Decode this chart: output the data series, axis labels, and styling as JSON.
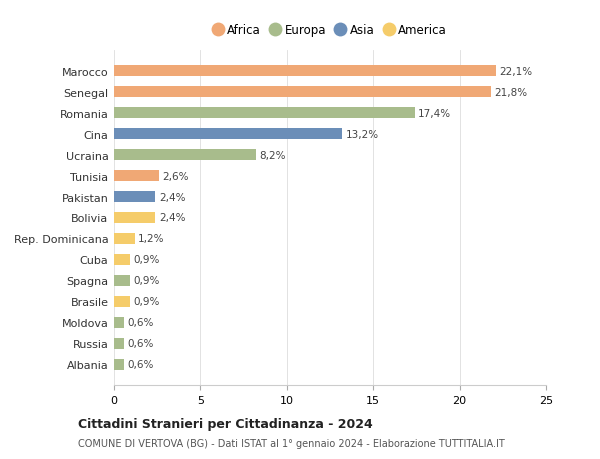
{
  "countries": [
    "Albania",
    "Russia",
    "Moldova",
    "Brasile",
    "Spagna",
    "Cuba",
    "Rep. Dominicana",
    "Bolivia",
    "Pakistan",
    "Tunisia",
    "Ucraina",
    "Cina",
    "Romania",
    "Senegal",
    "Marocco"
  ],
  "values": [
    0.6,
    0.6,
    0.6,
    0.9,
    0.9,
    0.9,
    1.2,
    2.4,
    2.4,
    2.6,
    8.2,
    13.2,
    17.4,
    21.8,
    22.1
  ],
  "labels": [
    "0,6%",
    "0,6%",
    "0,6%",
    "0,9%",
    "0,9%",
    "0,9%",
    "1,2%",
    "2,4%",
    "2,4%",
    "2,6%",
    "8,2%",
    "13,2%",
    "17,4%",
    "21,8%",
    "22,1%"
  ],
  "continents": [
    "Europa",
    "Europa",
    "Europa",
    "America",
    "Europa",
    "America",
    "America",
    "America",
    "Asia",
    "Africa",
    "Europa",
    "Asia",
    "Europa",
    "Africa",
    "Africa"
  ],
  "colors": {
    "Africa": "#F0A875",
    "Europa": "#A8BC8C",
    "Asia": "#6B8EB8",
    "America": "#F5CC6A"
  },
  "legend_order": [
    "Africa",
    "Europa",
    "Asia",
    "America"
  ],
  "title": "Cittadini Stranieri per Cittadinanza - 2024",
  "subtitle": "COMUNE DI VERTOVA (BG) - Dati ISTAT al 1° gennaio 2024 - Elaborazione TUTTITALIA.IT",
  "xlim": [
    0,
    25
  ],
  "xticks": [
    0,
    5,
    10,
    15,
    20,
    25
  ],
  "background_color": "#ffffff"
}
